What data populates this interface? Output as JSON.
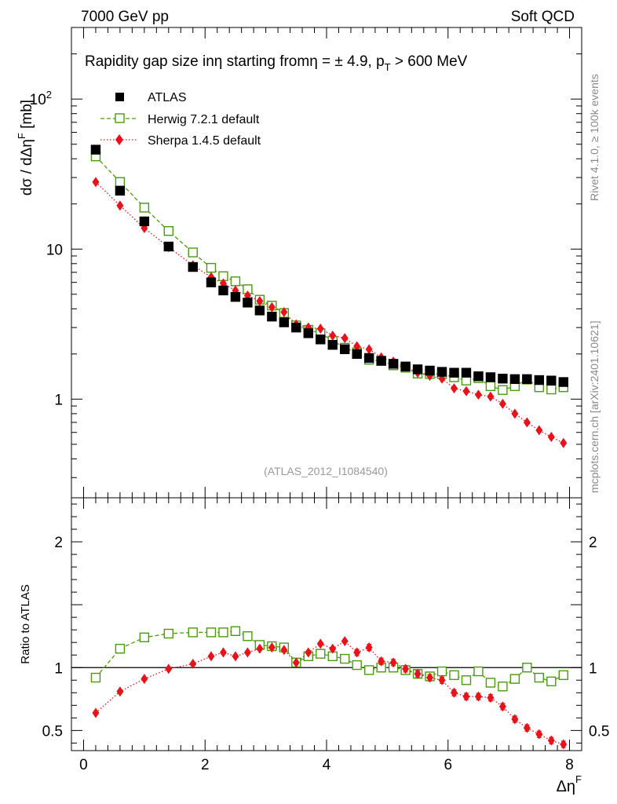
{
  "header": {
    "left": "7000 GeV pp",
    "right": "Soft QCD"
  },
  "side_labels": {
    "rivet": "Rivet 4.1.0, ≥ 100k events",
    "mcplots": "mcplots.cern.ch [arXiv:2401.10621]"
  },
  "chart_data": [
    {
      "type": "scatter",
      "panel": "main",
      "title": "Rapidity gap size in η starting from η = ± 4.9, pT > 600 MeV",
      "title_parts": {
        "a": "Rapidity gap size in",
        "b": "η starting from",
        "c": "η = ± 4.9, p",
        "sub": "T",
        "d": " > 600 MeV"
      },
      "ylabel": "dσ / dΔη^F [mb]",
      "ylabel_parts": {
        "a": "dσ / dΔη",
        "sup": "F",
        "b": " [mb]"
      },
      "xlabel": "Δη^F",
      "xlabel_parts": {
        "a": "Δη",
        "sup": "F"
      },
      "yscale": "log",
      "xlim": [
        -0.2,
        8.2
      ],
      "ylim": [
        0.22,
        300
      ],
      "x_ticks": [
        0,
        2,
        4,
        6,
        8
      ],
      "y_ticks": [
        {
          "value": 1,
          "label": "1"
        },
        {
          "value": 10,
          "label": "10"
        },
        {
          "value": 100,
          "label": "10",
          "sup": "2"
        }
      ],
      "legend_position": "top-left",
      "watermark": "(ATLAS_2012_I1084540)",
      "x": [
        0.2,
        0.6,
        1.0,
        1.4,
        1.8,
        2.1,
        2.3,
        2.5,
        2.7,
        2.9,
        3.1,
        3.3,
        3.5,
        3.7,
        3.9,
        4.1,
        4.3,
        4.5,
        4.7,
        4.9,
        5.1,
        5.3,
        5.5,
        5.7,
        5.9,
        6.1,
        6.3,
        6.5,
        6.7,
        6.9,
        7.1,
        7.3,
        7.5,
        7.7,
        7.9
      ],
      "series": [
        {
          "name": "ATLAS",
          "style": "data",
          "color": "#000000",
          "values": [
            46,
            24.5,
            15.3,
            10.4,
            7.6,
            6.0,
            5.3,
            4.8,
            4.4,
            3.9,
            3.55,
            3.25,
            3.0,
            2.75,
            2.5,
            2.3,
            2.15,
            2.0,
            1.88,
            1.8,
            1.72,
            1.65,
            1.58,
            1.55,
            1.52,
            1.5,
            1.5,
            1.42,
            1.4,
            1.37,
            1.36,
            1.36,
            1.34,
            1.33,
            1.3
          ]
        },
        {
          "name": "Herwig 7.2.1 default",
          "style": "open-square-dashed",
          "color": "#4a9a0d",
          "values": [
            41.5,
            28.0,
            18.9,
            13.2,
            9.5,
            7.5,
            6.6,
            6.1,
            5.4,
            4.6,
            4.2,
            3.75,
            3.1,
            2.9,
            2.75,
            2.45,
            2.2,
            2.05,
            1.83,
            1.8,
            1.68,
            1.62,
            1.48,
            1.47,
            1.47,
            1.4,
            1.33,
            1.38,
            1.22,
            1.15,
            1.22,
            1.35,
            1.2,
            1.16,
            1.2
          ]
        },
        {
          "name": "Sherpa 1.4.5 default",
          "style": "red-diamond-dotted",
          "color": "#e8121b",
          "values": [
            28.0,
            19.5,
            13.8,
            10.3,
            7.8,
            6.5,
            5.9,
            5.3,
            4.9,
            4.5,
            4.1,
            3.8,
            3.15,
            3.0,
            2.95,
            2.65,
            2.55,
            2.25,
            2.15,
            1.9,
            1.78,
            1.64,
            1.5,
            1.43,
            1.37,
            1.18,
            1.13,
            1.07,
            1.04,
            0.93,
            0.8,
            0.7,
            0.62,
            0.56,
            0.51
          ]
        }
      ]
    },
    {
      "type": "scatter",
      "panel": "ratio",
      "ylabel": "Ratio to ATLAS",
      "xlabel": "Δη^F",
      "xlim": [
        -0.2,
        8.2
      ],
      "ylim": [
        0.34,
        2.35
      ],
      "x_ticks": [
        0,
        2,
        4,
        6,
        8
      ],
      "y_ticks": [
        0.5,
        1,
        2
      ],
      "reference_line": 1,
      "x": [
        0.2,
        0.6,
        1.0,
        1.4,
        1.8,
        2.1,
        2.3,
        2.5,
        2.7,
        2.9,
        3.1,
        3.3,
        3.5,
        3.7,
        3.9,
        4.1,
        4.3,
        4.5,
        4.7,
        4.9,
        5.1,
        5.3,
        5.5,
        5.7,
        5.9,
        6.1,
        6.3,
        6.5,
        6.7,
        6.9,
        7.1,
        7.3,
        7.5,
        7.7,
        7.9
      ],
      "series": [
        {
          "name": "Herwig 7.2.1 default",
          "color": "#4a9a0d",
          "values": [
            0.92,
            1.15,
            1.24,
            1.27,
            1.28,
            1.28,
            1.28,
            1.29,
            1.25,
            1.18,
            1.17,
            1.16,
            1.04,
            1.09,
            1.11,
            1.09,
            1.07,
            1.02,
            0.98,
            1.0,
            1.0,
            0.98,
            0.95,
            0.93,
            0.97,
            0.94,
            0.9,
            0.97,
            0.88,
            0.85,
            0.91,
            1.0,
            0.92,
            0.89,
            0.94
          ]
        },
        {
          "name": "Sherpa 1.4.5 default",
          "color": "#e8121b",
          "values": [
            0.64,
            0.81,
            0.91,
            0.99,
            1.03,
            1.09,
            1.12,
            1.09,
            1.12,
            1.15,
            1.16,
            1.14,
            1.04,
            1.12,
            1.19,
            1.15,
            1.21,
            1.12,
            1.16,
            1.05,
            1.04,
            0.99,
            0.95,
            0.92,
            0.9,
            0.8,
            0.77,
            0.77,
            0.76,
            0.69,
            0.59,
            0.52,
            0.47,
            0.42,
            0.39
          ]
        }
      ]
    }
  ]
}
